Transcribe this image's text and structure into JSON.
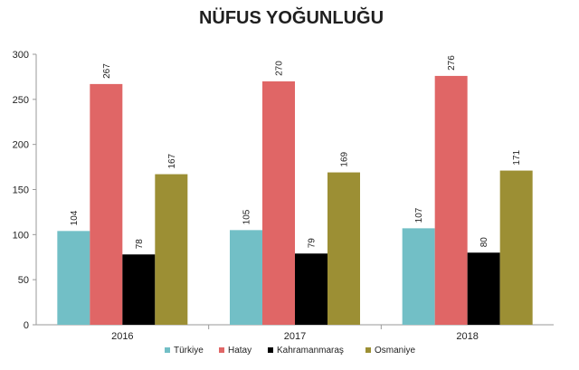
{
  "chart_data": {
    "type": "bar",
    "title": "NÜFUS YOĞUNLUĞU",
    "xlabel": "",
    "ylabel": "",
    "ylim": [
      0,
      300
    ],
    "yticks": [
      0,
      50,
      100,
      150,
      200,
      250,
      300
    ],
    "categories": [
      "2016",
      "2017",
      "2018"
    ],
    "series": [
      {
        "name": "Türkiye",
        "color": "#72bfc6",
        "values": [
          104,
          105,
          107
        ]
      },
      {
        "name": "Hatay",
        "color": "#e06666",
        "values": [
          267,
          270,
          276
        ]
      },
      {
        "name": "Kahramanmaraş",
        "color": "#000000",
        "values": [
          78,
          79,
          80
        ]
      },
      {
        "name": "Osmaniye",
        "color": "#9c8f34",
        "values": [
          167,
          169,
          171
        ]
      }
    ],
    "legend_position": "bottom",
    "grid": false
  }
}
